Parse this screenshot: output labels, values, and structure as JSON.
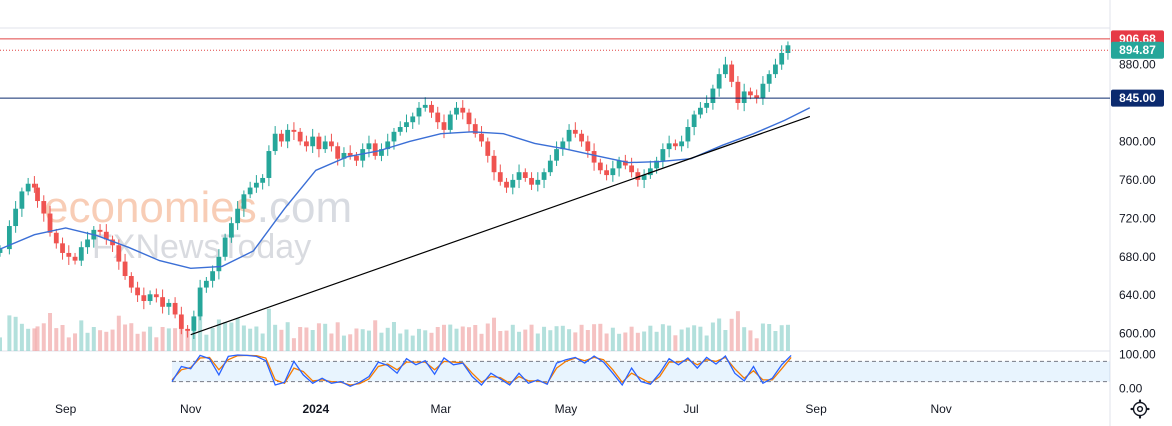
{
  "watermark": {
    "brand_primary": "economies",
    "brand_suffix": ".com",
    "brand_secondary": "FXNewsToday"
  },
  "colors": {
    "up": "#26a69a",
    "down": "#ef5350",
    "ma": "#3b6fd6",
    "resistance": "#e04545",
    "support": "#0b2a6e",
    "current": "#26a69a",
    "trendline": "#000000",
    "stoch_k": "#2962ff",
    "stoch_d": "#f57c00",
    "volume": "#ef9a9a"
  },
  "badges": [
    {
      "id": "resistance",
      "label": "906.68",
      "value": 906.68,
      "color": "#e63946"
    },
    {
      "id": "current",
      "label": "894.87",
      "value": 894.87,
      "color": "#26a69a"
    },
    {
      "id": "support",
      "label": "845.00",
      "value": 845.0,
      "color": "#0b2a6e"
    }
  ],
  "settings_icon": "gear-icon",
  "chart_data": {
    "type": "candlestick",
    "price_axis": {
      "ticks": [
        "880.00",
        "800.00",
        "760.00",
        "720.00",
        "680.00",
        "640.00",
        "600.00"
      ],
      "tick_values": [
        880,
        800,
        760,
        720,
        680,
        640,
        600
      ],
      "range": [
        582,
        918
      ]
    },
    "osc_axis": {
      "ticks": [
        "100.00",
        "0.00"
      ],
      "tick_values": [
        100,
        0
      ],
      "range": [
        -5,
        105
      ],
      "band": [
        20,
        80
      ]
    },
    "time_axis": {
      "labels": [
        "Sep",
        "Nov",
        "2024",
        "Mar",
        "May",
        "Jul",
        "Sep",
        "Nov"
      ],
      "bold": [
        false,
        false,
        true,
        false,
        false,
        false,
        false,
        false
      ],
      "positions": [
        0,
        2,
        4,
        6,
        8,
        10,
        12,
        14
      ],
      "domain": [
        -1.05,
        16.7
      ]
    },
    "horizontal_levels": [
      {
        "value": 906.68,
        "style": "solid",
        "role": "resistance"
      },
      {
        "value": 894.87,
        "style": "dotted",
        "role": "current"
      },
      {
        "value": 845.0,
        "style": "solid",
        "role": "support"
      }
    ],
    "trendline": {
      "from": {
        "x": 2.0,
        "y": 599
      },
      "to": {
        "x": 11.9,
        "y": 826
      }
    },
    "candles": [
      [
        -1.05,
        688
      ],
      [
        -0.9,
        712
      ],
      [
        -0.8,
        730
      ],
      [
        -0.7,
        748
      ],
      [
        -0.6,
        756
      ],
      [
        -0.5,
        752
      ],
      [
        -0.45,
        738
      ],
      [
        -0.35,
        725
      ],
      [
        -0.25,
        705
      ],
      [
        -0.15,
        694
      ],
      [
        -0.05,
        684
      ],
      [
        0.05,
        680
      ],
      [
        0.15,
        676
      ],
      [
        0.25,
        690
      ],
      [
        0.35,
        698
      ],
      [
        0.45,
        708
      ],
      [
        0.55,
        706
      ],
      [
        0.65,
        698
      ],
      [
        0.75,
        692
      ],
      [
        0.85,
        675
      ],
      [
        0.95,
        660
      ],
      [
        1.05,
        648
      ],
      [
        1.15,
        640
      ],
      [
        1.25,
        634
      ],
      [
        1.35,
        641
      ],
      [
        1.45,
        638
      ],
      [
        1.55,
        628
      ],
      [
        1.65,
        632
      ],
      [
        1.75,
        620
      ],
      [
        1.85,
        605
      ],
      [
        1.95,
        603
      ],
      [
        2.05,
        618
      ],
      [
        2.15,
        648
      ],
      [
        2.25,
        655
      ],
      [
        2.35,
        665
      ],
      [
        2.45,
        680
      ],
      [
        2.55,
        700
      ],
      [
        2.65,
        715
      ],
      [
        2.75,
        730
      ],
      [
        2.85,
        745
      ],
      [
        2.95,
        752
      ],
      [
        3.05,
        757
      ],
      [
        3.15,
        762
      ],
      [
        3.25,
        790
      ],
      [
        3.35,
        808
      ],
      [
        3.45,
        800
      ],
      [
        3.55,
        812
      ],
      [
        3.65,
        810
      ],
      [
        3.75,
        800
      ],
      [
        3.85,
        795
      ],
      [
        3.95,
        805
      ],
      [
        4.05,
        792
      ],
      [
        4.15,
        800
      ],
      [
        4.25,
        795
      ],
      [
        4.35,
        782
      ],
      [
        4.45,
        788
      ],
      [
        4.55,
        785
      ],
      [
        4.65,
        780
      ],
      [
        4.75,
        792
      ],
      [
        4.85,
        798
      ],
      [
        4.95,
        785
      ],
      [
        5.05,
        792
      ],
      [
        5.15,
        800
      ],
      [
        5.25,
        810
      ],
      [
        5.35,
        815
      ],
      [
        5.45,
        820
      ],
      [
        5.55,
        826
      ],
      [
        5.65,
        835
      ],
      [
        5.75,
        838
      ],
      [
        5.85,
        830
      ],
      [
        5.95,
        820
      ],
      [
        6.05,
        812
      ],
      [
        6.15,
        828
      ],
      [
        6.25,
        835
      ],
      [
        6.35,
        830
      ],
      [
        6.45,
        818
      ],
      [
        6.55,
        808
      ],
      [
        6.65,
        800
      ],
      [
        6.75,
        785
      ],
      [
        6.85,
        768
      ],
      [
        6.95,
        758
      ],
      [
        7.05,
        752
      ],
      [
        7.15,
        760
      ],
      [
        7.25,
        768
      ],
      [
        7.35,
        762
      ],
      [
        7.45,
        755
      ],
      [
        7.55,
        760
      ],
      [
        7.65,
        768
      ],
      [
        7.75,
        780
      ],
      [
        7.85,
        792
      ],
      [
        7.95,
        800
      ],
      [
        8.05,
        812
      ],
      [
        8.15,
        808
      ],
      [
        8.25,
        800
      ],
      [
        8.35,
        790
      ],
      [
        8.45,
        778
      ],
      [
        8.55,
        770
      ],
      [
        8.65,
        765
      ],
      [
        8.75,
        772
      ],
      [
        8.85,
        780
      ],
      [
        8.95,
        775
      ],
      [
        9.05,
        768
      ],
      [
        9.15,
        760
      ],
      [
        9.25,
        765
      ],
      [
        9.35,
        772
      ],
      [
        9.45,
        780
      ],
      [
        9.55,
        792
      ],
      [
        9.65,
        798
      ],
      [
        9.75,
        795
      ],
      [
        9.85,
        800
      ],
      [
        9.95,
        815
      ],
      [
        10.05,
        828
      ],
      [
        10.15,
        835
      ],
      [
        10.25,
        840
      ],
      [
        10.35,
        855
      ],
      [
        10.45,
        870
      ],
      [
        10.55,
        880
      ],
      [
        10.65,
        862
      ],
      [
        10.75,
        840
      ],
      [
        10.85,
        852
      ],
      [
        10.95,
        848
      ],
      [
        11.05,
        845
      ],
      [
        11.15,
        860
      ],
      [
        11.25,
        870
      ],
      [
        11.35,
        880
      ],
      [
        11.45,
        892
      ],
      [
        11.55,
        900
      ]
    ],
    "ma_points": [
      [
        -1.05,
        688
      ],
      [
        -0.5,
        703
      ],
      [
        0.0,
        710
      ],
      [
        0.5,
        702
      ],
      [
        1.0,
        690
      ],
      [
        1.5,
        676
      ],
      [
        2.0,
        668
      ],
      [
        2.5,
        670
      ],
      [
        3.0,
        686
      ],
      [
        3.5,
        730
      ],
      [
        4.0,
        770
      ],
      [
        4.5,
        784
      ],
      [
        5.0,
        790
      ],
      [
        5.5,
        800
      ],
      [
        6.0,
        808
      ],
      [
        6.5,
        810
      ],
      [
        7.0,
        808
      ],
      [
        7.5,
        798
      ],
      [
        8.0,
        792
      ],
      [
        8.5,
        785
      ],
      [
        9.0,
        778
      ],
      [
        9.5,
        779
      ],
      [
        10.0,
        782
      ],
      [
        10.5,
        796
      ],
      [
        11.0,
        808
      ],
      [
        11.5,
        822
      ],
      [
        11.9,
        835
      ]
    ],
    "stoch_k": [
      [
        1.7,
        20
      ],
      [
        1.85,
        65
      ],
      [
        2.0,
        58
      ],
      [
        2.15,
        98
      ],
      [
        2.3,
        88
      ],
      [
        2.45,
        40
      ],
      [
        2.6,
        95
      ],
      [
        2.75,
        99
      ],
      [
        2.9,
        98
      ],
      [
        3.05,
        95
      ],
      [
        3.2,
        82
      ],
      [
        3.35,
        10
      ],
      [
        3.5,
        18
      ],
      [
        3.65,
        80
      ],
      [
        3.8,
        40
      ],
      [
        3.95,
        15
      ],
      [
        4.1,
        30
      ],
      [
        4.25,
        15
      ],
      [
        4.4,
        20
      ],
      [
        4.55,
        6
      ],
      [
        4.7,
        18
      ],
      [
        4.85,
        35
      ],
      [
        5.0,
        78
      ],
      [
        5.15,
        68
      ],
      [
        5.3,
        45
      ],
      [
        5.45,
        88
      ],
      [
        5.6,
        70
      ],
      [
        5.75,
        82
      ],
      [
        5.9,
        42
      ],
      [
        6.05,
        90
      ],
      [
        6.2,
        70
      ],
      [
        6.35,
        75
      ],
      [
        6.5,
        35
      ],
      [
        6.65,
        10
      ],
      [
        6.8,
        45
      ],
      [
        6.95,
        28
      ],
      [
        7.1,
        10
      ],
      [
        7.25,
        45
      ],
      [
        7.4,
        15
      ],
      [
        7.55,
        25
      ],
      [
        7.7,
        12
      ],
      [
        7.85,
        75
      ],
      [
        8.0,
        85
      ],
      [
        8.15,
        92
      ],
      [
        8.3,
        75
      ],
      [
        8.45,
        96
      ],
      [
        8.6,
        78
      ],
      [
        8.75,
        45
      ],
      [
        8.9,
        10
      ],
      [
        9.05,
        60
      ],
      [
        9.2,
        20
      ],
      [
        9.35,
        12
      ],
      [
        9.5,
        45
      ],
      [
        9.65,
        88
      ],
      [
        9.8,
        70
      ],
      [
        9.95,
        90
      ],
      [
        10.1,
        60
      ],
      [
        10.25,
        92
      ],
      [
        10.4,
        72
      ],
      [
        10.55,
        96
      ],
      [
        10.7,
        45
      ],
      [
        10.85,
        22
      ],
      [
        11.0,
        65
      ],
      [
        11.15,
        15
      ],
      [
        11.3,
        30
      ],
      [
        11.45,
        70
      ],
      [
        11.6,
        98
      ]
    ],
    "stoch_d": [
      [
        1.7,
        25
      ],
      [
        1.85,
        55
      ],
      [
        2.0,
        62
      ],
      [
        2.15,
        90
      ],
      [
        2.3,
        92
      ],
      [
        2.45,
        55
      ],
      [
        2.6,
        85
      ],
      [
        2.75,
        97
      ],
      [
        2.9,
        98
      ],
      [
        3.05,
        97
      ],
      [
        3.2,
        90
      ],
      [
        3.35,
        25
      ],
      [
        3.5,
        15
      ],
      [
        3.65,
        60
      ],
      [
        3.8,
        50
      ],
      [
        3.95,
        22
      ],
      [
        4.1,
        25
      ],
      [
        4.25,
        20
      ],
      [
        4.4,
        18
      ],
      [
        4.55,
        10
      ],
      [
        4.7,
        14
      ],
      [
        4.85,
        28
      ],
      [
        5.0,
        65
      ],
      [
        5.15,
        72
      ],
      [
        5.3,
        55
      ],
      [
        5.45,
        78
      ],
      [
        5.6,
        78
      ],
      [
        5.75,
        78
      ],
      [
        5.9,
        55
      ],
      [
        6.05,
        80
      ],
      [
        6.2,
        78
      ],
      [
        6.35,
        76
      ],
      [
        6.5,
        45
      ],
      [
        6.65,
        18
      ],
      [
        6.8,
        35
      ],
      [
        6.95,
        32
      ],
      [
        7.1,
        15
      ],
      [
        7.25,
        35
      ],
      [
        7.4,
        22
      ],
      [
        7.55,
        22
      ],
      [
        7.7,
        15
      ],
      [
        7.85,
        60
      ],
      [
        8.0,
        80
      ],
      [
        8.15,
        90
      ],
      [
        8.3,
        82
      ],
      [
        8.45,
        92
      ],
      [
        8.6,
        85
      ],
      [
        8.75,
        55
      ],
      [
        8.9,
        18
      ],
      [
        9.05,
        45
      ],
      [
        9.2,
        30
      ],
      [
        9.35,
        15
      ],
      [
        9.5,
        35
      ],
      [
        9.65,
        78
      ],
      [
        9.8,
        78
      ],
      [
        9.95,
        85
      ],
      [
        10.1,
        70
      ],
      [
        10.25,
        85
      ],
      [
        10.4,
        80
      ],
      [
        10.55,
        92
      ],
      [
        10.7,
        58
      ],
      [
        10.85,
        30
      ],
      [
        11.0,
        52
      ],
      [
        11.15,
        25
      ],
      [
        11.3,
        25
      ],
      [
        11.45,
        58
      ],
      [
        11.6,
        92
      ]
    ]
  }
}
